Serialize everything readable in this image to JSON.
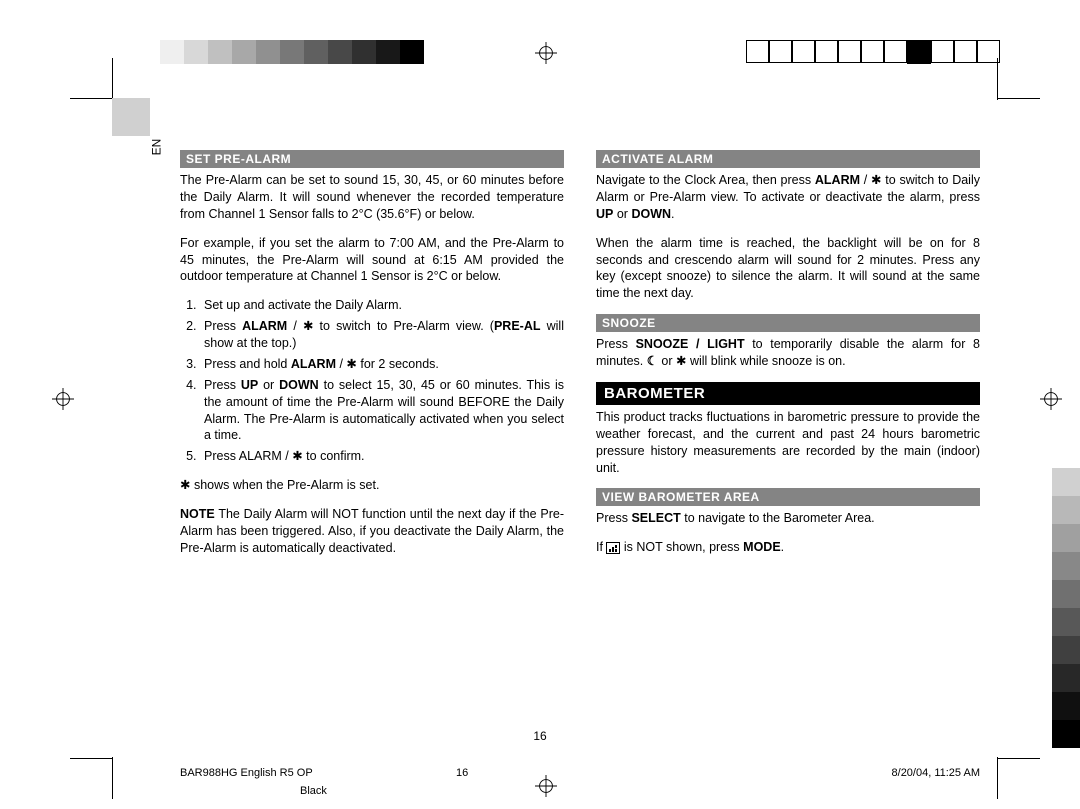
{
  "lang_label": "EN",
  "page_number": "16",
  "footer": {
    "doc": "BAR988HG English R5 OP",
    "page": "16",
    "datetime": "8/20/04, 11:25 AM",
    "color": "Black"
  },
  "top_left_swatches": [
    "#efefef",
    "#d8d8d8",
    "#c0c0c0",
    "#a8a8a8",
    "#909090",
    "#787878",
    "#606060",
    "#484848",
    "#303030",
    "#181818",
    "#000000"
  ],
  "top_right_pattern": [
    "w",
    "w",
    "w",
    "w",
    "w",
    "w",
    "w",
    "b",
    "w",
    "w",
    "w"
  ],
  "side_swatches": [
    "#d0d0d0",
    "#b8b8b8",
    "#a0a0a0",
    "#888888",
    "#707070",
    "#585858",
    "#404040",
    "#282828",
    "#101010",
    "#000000"
  ],
  "left_col": {
    "h1": "SET PRE-ALARM",
    "p1": "The Pre-Alarm can be set to sound 15, 30, 45, or 60 minutes before the Daily Alarm. It will sound whenever the recorded temperature from Channel 1 Sensor falls to 2°C (35.6°F) or below.",
    "p2": "For example, if you set the alarm to 7:00 AM, and the Pre-Alarm to 45 minutes, the Pre-Alarm will sound at 6:15 AM provided the outdoor temperature at Channel 1 Sensor is 2°C or below.",
    "ol": [
      "Set up and activate the Daily Alarm.",
      "Press <b>ALARM</b> / ✱ to switch to Pre-Alarm view. (<b>PRE-AL</b> will show at the top.)",
      "Press and hold <b>ALARM</b> / ✱ for 2 seconds.",
      "Press <b>UP</b> or <b>DOWN</b> to select 15, 30, 45 or 60 minutes. This is the amount of time the Pre-Alarm will sound BEFORE the Daily Alarm. The Pre-Alarm is automatically activated when you select a time.",
      "Press ALARM / ✱ to confirm."
    ],
    "p3": "✱ shows when the Pre-Alarm is set.",
    "p4": "<b>NOTE</b>  The Daily Alarm will NOT function until the next day if the Pre-Alarm has been triggered. Also, if you deactivate the Daily Alarm, the Pre-Alarm is automatically deactivated."
  },
  "right_col": {
    "h1": "ACTIVATE ALARM",
    "p1": "Navigate to the Clock Area, then press <b>ALARM</b> / ✱ to switch to Daily Alarm or Pre-Alarm view. To activate or deactivate the alarm, press <b>UP</b> or <b>DOWN</b>.",
    "p2": "When the alarm time is reached, the backlight will be on for 8 seconds and crescendo alarm will sound for 2 minutes. Press any key (except snooze) to silence the alarm. It will sound at the same time the next day.",
    "h2": "SNOOZE",
    "p3_a": "Press ",
    "p3_b": "SNOOZE / LIGHT",
    "p3_c": " to temporarily disable the alarm for 8 minutes. ",
    "p3_d": " or ✱ will blink while snooze is on.",
    "h3": "BAROMETER",
    "p4": "This product tracks fluctuations in barometric pressure to provide the weather forecast, and the current and past 24 hours barometric pressure history measurements are recorded by the main (indoor) unit.",
    "h4": "VIEW BAROMETER AREA",
    "p5": "Press <b>SELECT</b> to navigate to the Barometer Area.",
    "p6_a": "If ",
    "p6_b": " is NOT shown, press ",
    "p6_c": "MODE",
    "p6_d": "."
  }
}
